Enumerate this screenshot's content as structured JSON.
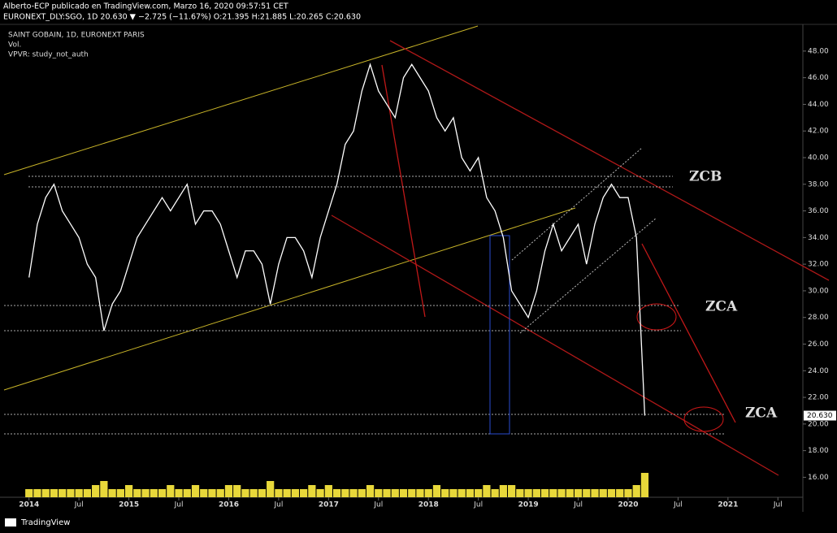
{
  "header": {
    "line1": "Alberto-ECP publicado en TradingView.com, Marzo 16, 2020 09:57:51 CET",
    "line2": "EURONEXT_DLY:SGO, 1D 20.630 ▼ −2.725 (−11.67%) O:21.395 H:21.885 L:20.265 C:20.630"
  },
  "footer": "TradingView",
  "chart_data": {
    "type": "line",
    "title": "SAINT GOBAIN, 1D, EURONEXT PARIS",
    "subtitles": [
      "Vol.",
      "VPVR: study_not_auth"
    ],
    "x": [
      "2014-01",
      "2014-02",
      "2014-03",
      "2014-04",
      "2014-05",
      "2014-06",
      "2014-07",
      "2014-08",
      "2014-09",
      "2014-10",
      "2014-11",
      "2014-12",
      "2015-01",
      "2015-02",
      "2015-03",
      "2015-04",
      "2015-05",
      "2015-06",
      "2015-07",
      "2015-08",
      "2015-09",
      "2015-10",
      "2015-11",
      "2015-12",
      "2016-01",
      "2016-02",
      "2016-03",
      "2016-04",
      "2016-05",
      "2016-06",
      "2016-07",
      "2016-08",
      "2016-09",
      "2016-10",
      "2016-11",
      "2016-12",
      "2017-01",
      "2017-02",
      "2017-03",
      "2017-04",
      "2017-05",
      "2017-06",
      "2017-07",
      "2017-08",
      "2017-09",
      "2017-10",
      "2017-11",
      "2017-12",
      "2018-01",
      "2018-02",
      "2018-03",
      "2018-04",
      "2018-05",
      "2018-06",
      "2018-07",
      "2018-08",
      "2018-09",
      "2018-10",
      "2018-11",
      "2018-12",
      "2019-01",
      "2019-02",
      "2019-03",
      "2019-04",
      "2019-05",
      "2019-06",
      "2019-07",
      "2019-08",
      "2019-09",
      "2019-10",
      "2019-11",
      "2019-12",
      "2020-01",
      "2020-02",
      "2020-03"
    ],
    "series": [
      {
        "name": "SAINT GOBAIN",
        "color": "#ffffff",
        "values": [
          31,
          35,
          37,
          38,
          36,
          35,
          34,
          32,
          31,
          27,
          29,
          30,
          32,
          34,
          35,
          36,
          37,
          36,
          37,
          38,
          35,
          36,
          36,
          35,
          33,
          31,
          33,
          33,
          32,
          29,
          32,
          34,
          34,
          33,
          31,
          34,
          36,
          38,
          41,
          42,
          45,
          47,
          45,
          44,
          43,
          46,
          47,
          46,
          45,
          43,
          42,
          43,
          40,
          39,
          40,
          37,
          36,
          34,
          30,
          29,
          28,
          30,
          33,
          35,
          33,
          34,
          35,
          32,
          35,
          37,
          38,
          37,
          37,
          34,
          20.63
        ]
      },
      {
        "name": "Vol.",
        "color": "#e8d83a",
        "axis": "volume",
        "values": [
          2,
          2,
          2,
          2,
          2,
          2,
          2,
          2,
          3,
          4,
          2,
          2,
          3,
          2,
          2,
          2,
          2,
          3,
          2,
          2,
          3,
          2,
          2,
          2,
          3,
          3,
          2,
          2,
          2,
          4,
          2,
          2,
          2,
          2,
          3,
          2,
          3,
          2,
          2,
          2,
          2,
          3,
          2,
          2,
          2,
          2,
          2,
          2,
          2,
          3,
          2,
          2,
          2,
          2,
          2,
          3,
          2,
          3,
          3,
          2,
          2,
          2,
          2,
          2,
          2,
          2,
          2,
          2,
          2,
          2,
          2,
          2,
          2,
          3,
          6
        ]
      }
    ],
    "vlim": [
      0,
      10
    ],
    "xlim": [
      "2013-10",
      "2021-10"
    ],
    "xticks": [
      {
        "value": "2014-01",
        "label": "2014"
      },
      {
        "value": "2014-07",
        "label": "Jul"
      },
      {
        "value": "2015-01",
        "label": "2015"
      },
      {
        "value": "2015-07",
        "label": "Jul"
      },
      {
        "value": "2016-01",
        "label": "2016"
      },
      {
        "value": "2016-07",
        "label": "Jul"
      },
      {
        "value": "2017-01",
        "label": "2017"
      },
      {
        "value": "2017-07",
        "label": "Jul"
      },
      {
        "value": "2018-01",
        "label": "2018"
      },
      {
        "value": "2018-07",
        "label": "Jul"
      },
      {
        "value": "2019-01",
        "label": "2019"
      },
      {
        "value": "2019-07",
        "label": "Jul"
      },
      {
        "value": "2020-01",
        "label": "2020"
      },
      {
        "value": "2020-07",
        "label": "Jul"
      },
      {
        "value": "2021-01",
        "label": "2021"
      },
      {
        "value": "2021-07",
        "label": "Jul"
      }
    ],
    "ylim": [
      14.5,
      49.7
    ],
    "yticks": [
      {
        "value": 16,
        "label": "16.00"
      },
      {
        "value": 18,
        "label": "18.00"
      },
      {
        "value": 20,
        "label": "20.00"
      },
      {
        "value": 22,
        "label": "22.00"
      },
      {
        "value": 24,
        "label": "24.00"
      },
      {
        "value": 26,
        "label": "26.00"
      },
      {
        "value": 28,
        "label": "28.00"
      },
      {
        "value": 30,
        "label": "30.00"
      },
      {
        "value": 32,
        "label": "32.00"
      },
      {
        "value": 34,
        "label": "34.00"
      },
      {
        "value": 36,
        "label": "36.00"
      },
      {
        "value": 38,
        "label": "38.00"
      },
      {
        "value": 40,
        "label": "40.00"
      },
      {
        "value": 42,
        "label": "42.00"
      },
      {
        "value": 44,
        "label": "44.00"
      },
      {
        "value": 46,
        "label": "46.00"
      },
      {
        "value": 48,
        "label": "48.00"
      }
    ],
    "last_label": "20.630",
    "annotations": [
      {
        "text": "ZCB",
        "color": "#c0282a"
      },
      {
        "text": "ZCA",
        "color": "#22dd22"
      },
      {
        "text": "ZCA",
        "color": "#22dd22"
      }
    ]
  }
}
